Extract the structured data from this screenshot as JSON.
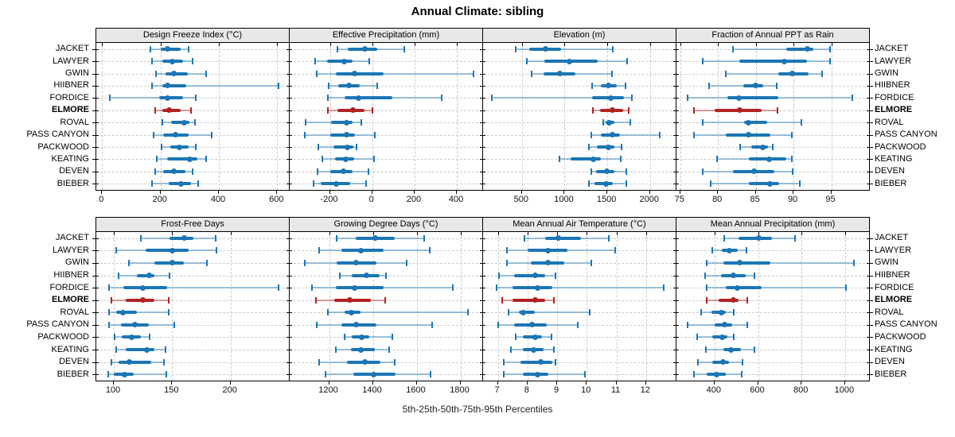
{
  "figure": {
    "title": "Annual Climate: sibling",
    "caption": "5th-25th-50th-75th-95th Percentiles"
  },
  "chart_data": {
    "type": "dot-whisker percentile plot (trellis, 2 rows x 4 panels)",
    "title": "Annual Climate: sibling",
    "caption": "5th-25th-50th-75th-95th Percentiles",
    "percentiles": [
      5,
      25,
      50,
      75,
      95
    ],
    "stations": [
      "JACKET",
      "LAWYER",
      "GWIN",
      "HIIBNER",
      "FORDICE",
      "ELMORE",
      "ROVAL",
      "PASS CANYON",
      "PACKWOOD",
      "KEATING",
      "DEVEN",
      "BIEBER"
    ],
    "highlighted_station": "ELMORE",
    "legend_position": "none",
    "grid": true,
    "colors": {
      "series": "#1c76b4",
      "highlight": "#b22222",
      "header_bg": "#e8e8e8",
      "grid": "#cccccc",
      "border": "#000000",
      "text": "#000000"
    },
    "panels": [
      {
        "title": "Design Freeze Index (°C)",
        "xlim": [
          -20,
          640
        ],
        "ticks": [
          0,
          200,
          400,
          600
        ],
        "values": [
          [
            165,
            200,
            225,
            268,
            295
          ],
          [
            170,
            205,
            240,
            278,
            310
          ],
          [
            185,
            218,
            245,
            295,
            355
          ],
          [
            170,
            205,
            225,
            288,
            605
          ],
          [
            25,
            195,
            225,
            278,
            320
          ],
          [
            183,
            205,
            230,
            270,
            305
          ],
          [
            205,
            237,
            280,
            300,
            318
          ],
          [
            177,
            210,
            250,
            296,
            375
          ],
          [
            203,
            234,
            265,
            296,
            320
          ],
          [
            186,
            224,
            300,
            326,
            355
          ],
          [
            181,
            209,
            246,
            286,
            310
          ],
          [
            170,
            228,
            270,
            305,
            330
          ]
        ]
      },
      {
        "title": "Effective Precipitation (mm)",
        "xlim": [
          -390,
          520
        ],
        "ticks": [
          -200,
          0,
          200,
          400
        ],
        "values": [
          [
            -165,
            -115,
            -35,
            25,
            150
          ],
          [
            -268,
            -214,
            -132,
            -92,
            -13
          ],
          [
            -264,
            -172,
            -84,
            53,
            478
          ],
          [
            -204,
            -160,
            -111,
            -60,
            25
          ],
          [
            -208,
            -132,
            -63,
            94,
            327
          ],
          [
            -208,
            -166,
            -92,
            -38,
            0
          ],
          [
            -314,
            -195,
            -122,
            -94,
            -50
          ],
          [
            -318,
            -197,
            -122,
            -82,
            13
          ],
          [
            -254,
            -185,
            -116,
            -88,
            -75
          ],
          [
            -236,
            -174,
            -126,
            -84,
            10
          ],
          [
            -260,
            -199,
            -136,
            -94,
            -19
          ],
          [
            -279,
            -242,
            -170,
            -103,
            -29
          ]
        ]
      },
      {
        "title": "Elevation (m)",
        "xlim": [
          45,
          2300
        ],
        "ticks": [
          500,
          1000,
          1500,
          2000
        ],
        "values": [
          [
            430,
            585,
            780,
            960,
            1565
          ],
          [
            560,
            760,
            1055,
            1385,
            1735
          ],
          [
            610,
            755,
            940,
            1125,
            1555
          ],
          [
            1320,
            1425,
            1515,
            1615,
            1710
          ],
          [
            150,
            1325,
            1540,
            1695,
            1785
          ],
          [
            1335,
            1415,
            1560,
            1685,
            1750
          ],
          [
            1450,
            1480,
            1525,
            1585,
            1765
          ],
          [
            1315,
            1425,
            1555,
            1650,
            2110
          ],
          [
            1280,
            1375,
            1510,
            1580,
            1665
          ],
          [
            940,
            1070,
            1335,
            1425,
            1655
          ],
          [
            1315,
            1365,
            1490,
            1580,
            1720
          ],
          [
            1285,
            1350,
            1480,
            1565,
            1725
          ]
        ]
      },
      {
        "title": "Fraction of Annual PPT as Rain",
        "xlim": [
          74.5,
          100
        ],
        "ticks": [
          75,
          80,
          85,
          90,
          95
        ],
        "values": [
          [
            82,
            89,
            91.8,
            92.6,
            94.8
          ],
          [
            78,
            82.8,
            88.8,
            91.8,
            94.8
          ],
          [
            81,
            88,
            89.8,
            92,
            93.8
          ],
          [
            78.8,
            83.3,
            85,
            86,
            87.8
          ],
          [
            76,
            81.2,
            82.8,
            88,
            97.8
          ],
          [
            76.8,
            79.6,
            82.9,
            85.8,
            87.9
          ],
          [
            78,
            83.5,
            84,
            86.5,
            91
          ],
          [
            76.8,
            81,
            84,
            86.9,
            89.8
          ],
          [
            82.9,
            84.4,
            85.9,
            86.6,
            87.2
          ],
          [
            79.9,
            84.1,
            86.8,
            89,
            89.8
          ],
          [
            78,
            82,
            84.8,
            87.5,
            89.9
          ],
          [
            79,
            84.1,
            86.9,
            88.1,
            90.8
          ]
        ]
      },
      {
        "title": "Frost-Free Days",
        "xlim": [
          85,
          250
        ],
        "ticks": [
          100,
          150,
          200
        ],
        "values": [
          [
            123,
            148,
            160,
            168,
            187
          ],
          [
            102,
            127,
            150,
            164,
            188
          ],
          [
            113,
            135,
            150,
            160,
            180
          ],
          [
            104,
            120,
            130,
            135,
            148
          ],
          [
            96,
            108,
            125,
            146,
            241
          ],
          [
            98,
            110,
            125,
            135,
            147
          ],
          [
            96,
            102,
            108,
            120,
            147
          ],
          [
            96,
            106,
            118,
            130,
            152
          ],
          [
            101,
            107,
            115,
            123,
            131
          ],
          [
            102,
            110,
            128,
            135,
            144
          ],
          [
            98,
            104,
            113,
            132,
            143
          ],
          [
            95,
            100,
            109,
            117,
            145
          ]
        ]
      },
      {
        "title": "Growing Degree Days (°C)",
        "xlim": [
          1020,
          1900
        ],
        "ticks": [
          1200,
          1400,
          1600,
          1800
        ],
        "values": [
          [
            1235,
            1320,
            1410,
            1500,
            1635
          ],
          [
            1155,
            1255,
            1345,
            1450,
            1660
          ],
          [
            1090,
            1235,
            1325,
            1415,
            1555
          ],
          [
            1250,
            1305,
            1370,
            1430,
            1460
          ],
          [
            1120,
            1230,
            1315,
            1450,
            1765
          ],
          [
            1140,
            1225,
            1295,
            1390,
            1455
          ],
          [
            1195,
            1270,
            1300,
            1345,
            1835
          ],
          [
            1145,
            1255,
            1325,
            1415,
            1670
          ],
          [
            1270,
            1305,
            1350,
            1385,
            1490
          ],
          [
            1230,
            1300,
            1345,
            1410,
            1475
          ],
          [
            1155,
            1280,
            1365,
            1435,
            1500
          ],
          [
            1185,
            1310,
            1405,
            1505,
            1665
          ]
        ]
      },
      {
        "title": "Mean Annual Air Temperature (°C)",
        "xlim": [
          6.5,
          13
        ],
        "ticks": [
          7,
          8,
          9,
          10,
          11,
          12
        ],
        "values": [
          [
            7.9,
            8.6,
            9.05,
            9.8,
            10.75
          ],
          [
            7.3,
            8.0,
            8.7,
            9.35,
            10.95
          ],
          [
            7.3,
            8.1,
            8.7,
            9.25,
            10.15
          ],
          [
            7.05,
            7.55,
            8.25,
            8.6,
            8.95
          ],
          [
            6.95,
            7.5,
            8.35,
            8.85,
            12.6
          ],
          [
            7.15,
            7.5,
            8.25,
            8.6,
            8.9
          ],
          [
            7.35,
            7.7,
            7.85,
            8.25,
            10.1
          ],
          [
            7.0,
            7.55,
            8.15,
            8.65,
            9.7
          ],
          [
            7.6,
            7.85,
            8.25,
            8.5,
            8.8
          ],
          [
            7.45,
            7.85,
            8.2,
            8.55,
            8.9
          ],
          [
            7.2,
            7.75,
            8.45,
            8.85,
            8.95
          ],
          [
            7.2,
            7.85,
            8.35,
            8.7,
            9.95
          ]
        ]
      },
      {
        "title": "Mean Annual Precipitation (mm)",
        "xlim": [
          225,
          1110
        ],
        "ticks": [
          400,
          600,
          800,
          1000
        ],
        "values": [
          [
            445,
            510,
            605,
            665,
            770
          ],
          [
            390,
            435,
            470,
            505,
            545
          ],
          [
            365,
            440,
            515,
            655,
            1040
          ],
          [
            355,
            430,
            485,
            545,
            585
          ],
          [
            365,
            450,
            505,
            615,
            1005
          ],
          [
            365,
            420,
            485,
            510,
            550
          ],
          [
            340,
            385,
            430,
            450,
            490
          ],
          [
            275,
            400,
            445,
            480,
            550
          ],
          [
            320,
            390,
            435,
            460,
            490
          ],
          [
            360,
            440,
            475,
            520,
            585
          ],
          [
            325,
            390,
            440,
            465,
            530
          ],
          [
            305,
            365,
            410,
            450,
            525
          ]
        ]
      }
    ]
  }
}
